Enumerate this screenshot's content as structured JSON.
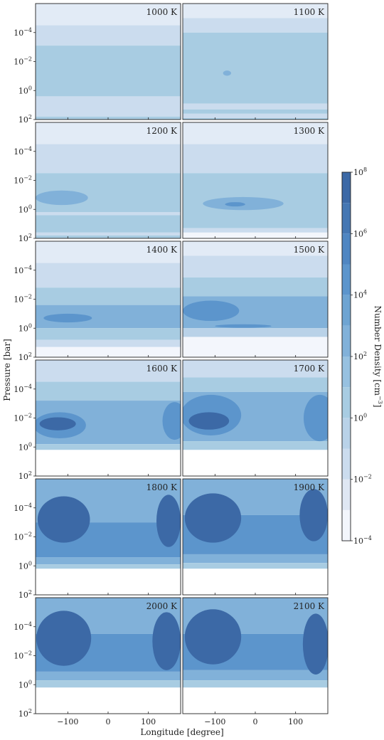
{
  "chart_data": {
    "type": "heatmap",
    "title": "",
    "xlabel": "Longitude [degree]",
    "ylabel": "Pressure [bar]",
    "xlim": [
      -180,
      180
    ],
    "ylim": [
      100,
      1e-06
    ],
    "yscale": "log",
    "y_inverted": true,
    "x_ticks": [
      -100,
      0,
      100
    ],
    "x_tick_labels": [
      "−100",
      "0",
      "100"
    ],
    "y_ticks_exp": [
      -4,
      -2,
      0,
      2
    ],
    "grid": false,
    "colorbar": {
      "label": "Number Density [cm",
      "label_exponent": "−3",
      "label_close": "]",
      "tick_exponents": [
        8,
        6,
        4,
        2,
        0,
        -2,
        -4
      ],
      "levels_log10": [
        -4,
        -3,
        -2,
        -1,
        0,
        1,
        2,
        3,
        4,
        5,
        6,
        7,
        8
      ],
      "colors": [
        "#f3f6fc",
        "#dfe7f3",
        "#cbdcee",
        "#b9d2e8",
        "#a8cce2",
        "#97c1e0",
        "#81b1d9",
        "#6ea4d2",
        "#5c95cc",
        "#4f86c2",
        "#4577b3",
        "#3c69a6",
        "#335b97"
      ],
      "scale": "log"
    },
    "panels": [
      {
        "temp": "1000 K",
        "bands": [
          {
            "p": [
              -6,
              -4.5
            ],
            "level": "#e2ebf6"
          },
          {
            "p": [
              -4.5,
              -3.1
            ],
            "level": "#cbdcee"
          },
          {
            "p": [
              -3.1,
              0.4
            ],
            "level": "#a8cce2"
          },
          {
            "p": [
              0.4,
              1.8
            ],
            "level": "#cbdcee"
          },
          {
            "p": [
              1.8,
              2
            ],
            "level": "#a8cce2"
          }
        ],
        "blobs": []
      },
      {
        "temp": "1100 K",
        "bands": [
          {
            "p": [
              -6,
              -5
            ],
            "level": "#e2ebf6"
          },
          {
            "p": [
              -5,
              -4
            ],
            "level": "#cbdcee"
          },
          {
            "p": [
              -4,
              0.9
            ],
            "level": "#a8cce2"
          },
          {
            "p": [
              0.9,
              1.3
            ],
            "level": "#cbdcee"
          },
          {
            "p": [
              1.3,
              1.6
            ],
            "level": "#a8cce2"
          },
          {
            "p": [
              1.6,
              1.9
            ],
            "level": "#cbdcee"
          },
          {
            "p": [
              1.9,
              2
            ],
            "level": "#a8cce2"
          }
        ],
        "blobs": [
          {
            "lon": -70,
            "p": -1.2,
            "rx": 10,
            "rp": 0.18,
            "level": "#81b1d9"
          }
        ]
      },
      {
        "temp": "1200 K",
        "bands": [
          {
            "p": [
              -6,
              -4.5
            ],
            "level": "#e2ebf6"
          },
          {
            "p": [
              -4.5,
              -2.5
            ],
            "level": "#cbdcee"
          },
          {
            "p": [
              -2.5,
              0.2
            ],
            "level": "#a8cce2"
          },
          {
            "p": [
              0.2,
              0.4
            ],
            "level": "#cbdcee"
          },
          {
            "p": [
              0.4,
              1.6
            ],
            "level": "#a8cce2"
          },
          {
            "p": [
              1.6,
              1.8
            ],
            "level": "#cbdcee"
          },
          {
            "p": [
              1.8,
              2
            ],
            "level": "#a8cce2"
          }
        ],
        "blobs": [
          {
            "lon": -115,
            "p": -0.8,
            "rx": 65,
            "rp": 0.5,
            "level": "#81b1d9"
          }
        ]
      },
      {
        "temp": "1300 K",
        "bands": [
          {
            "p": [
              -6,
              -4.5
            ],
            "level": "#e2ebf6"
          },
          {
            "p": [
              -4.5,
              -2.5
            ],
            "level": "#cbdcee"
          },
          {
            "p": [
              -2.5,
              1.3
            ],
            "level": "#a8cce2"
          },
          {
            "p": [
              1.3,
              1.6
            ],
            "level": "#cbdcee"
          },
          {
            "p": [
              1.6,
              2
            ],
            "level": "#f3f6fc"
          }
        ],
        "blobs": [
          {
            "lon": -30,
            "p": -0.4,
            "rx": 100,
            "rp": 0.45,
            "level": "#81b1d9"
          },
          {
            "lon": -50,
            "p": -0.35,
            "rx": 25,
            "rp": 0.15,
            "level": "#5c95cc"
          }
        ]
      },
      {
        "temp": "1400 K",
        "bands": [
          {
            "p": [
              -6,
              -4.5
            ],
            "level": "#e2ebf6"
          },
          {
            "p": [
              -4.5,
              -2.8
            ],
            "level": "#cbdcee"
          },
          {
            "p": [
              -2.8,
              -1.6
            ],
            "level": "#a8cce2"
          },
          {
            "p": [
              -1.6,
              0
            ],
            "level": "#81b1d9"
          },
          {
            "p": [
              0,
              0.8
            ],
            "level": "#a8cce2"
          },
          {
            "p": [
              0.8,
              1.3
            ],
            "level": "#cbdcee"
          },
          {
            "p": [
              1.3,
              2
            ],
            "level": "#f3f6fc"
          }
        ],
        "blobs": [
          {
            "lon": -100,
            "p": -0.7,
            "rx": 60,
            "rp": 0.3,
            "level": "#5c95cc"
          }
        ]
      },
      {
        "temp": "1500 K",
        "bands": [
          {
            "p": [
              -6,
              -5
            ],
            "level": "#e2ebf6"
          },
          {
            "p": [
              -5,
              -3.5
            ],
            "level": "#cbdcee"
          },
          {
            "p": [
              -3.5,
              -2.2
            ],
            "level": "#a8cce2"
          },
          {
            "p": [
              -2.2,
              0
            ],
            "level": "#81b1d9"
          },
          {
            "p": [
              0,
              0.6
            ],
            "level": "#b9d2e8"
          },
          {
            "p": [
              0.6,
              2
            ],
            "level": "#f3f6fc"
          }
        ],
        "blobs": [
          {
            "lon": -110,
            "p": -1.2,
            "rx": 70,
            "rp": 0.7,
            "level": "#5c95cc"
          },
          {
            "lon": -30,
            "p": -0.15,
            "rx": 70,
            "rp": 0.12,
            "level": "#5c95cc"
          }
        ]
      },
      {
        "temp": "1600 K",
        "bands": [
          {
            "p": [
              -6,
              -4.5
            ],
            "level": "#cbdcee"
          },
          {
            "p": [
              -4.5,
              -3.2
            ],
            "level": "#a8cce2"
          },
          {
            "p": [
              -3.2,
              -0.2
            ],
            "level": "#81b1d9"
          },
          {
            "p": [
              -0.2,
              0.2
            ],
            "level": "#a8cce2"
          },
          {
            "p": [
              0.2,
              2
            ],
            "level": "#ffffff"
          }
        ],
        "blobs": [
          {
            "lon": -120,
            "p": -1.5,
            "rx": 65,
            "rp": 0.9,
            "level": "#5c95cc"
          },
          {
            "lon": -125,
            "p": -1.6,
            "rx": 45,
            "rp": 0.45,
            "level": "#3c69a6"
          },
          {
            "lon": 165,
            "p": -1.8,
            "rx": 30,
            "rp": 1.3,
            "level": "#5c95cc"
          }
        ]
      },
      {
        "temp": "1700 K",
        "bands": [
          {
            "p": [
              -6,
              -4.8
            ],
            "level": "#cbdcee"
          },
          {
            "p": [
              -4.8,
              -3.8
            ],
            "level": "#a8cce2"
          },
          {
            "p": [
              -3.8,
              -0.4
            ],
            "level": "#81b1d9"
          },
          {
            "p": [
              -0.4,
              0.2
            ],
            "level": "#a8cce2"
          },
          {
            "p": [
              0.2,
              2
            ],
            "level": "#ffffff"
          }
        ],
        "blobs": [
          {
            "lon": -110,
            "p": -2.2,
            "rx": 75,
            "rp": 1.4,
            "level": "#5c95cc"
          },
          {
            "lon": -115,
            "p": -1.8,
            "rx": 50,
            "rp": 0.6,
            "level": "#3c69a6"
          },
          {
            "lon": 160,
            "p": -2,
            "rx": 40,
            "rp": 1.6,
            "level": "#5c95cc"
          }
        ]
      },
      {
        "temp": "1800 K",
        "bands": [
          {
            "p": [
              -6,
              -3
            ],
            "level": "#81b1d9"
          },
          {
            "p": [
              -3,
              -0.6
            ],
            "level": "#5c95cc"
          },
          {
            "p": [
              -0.6,
              -0.1
            ],
            "level": "#81b1d9"
          },
          {
            "p": [
              -0.1,
              0.2
            ],
            "level": "#a8cce2"
          },
          {
            "p": [
              0.2,
              2
            ],
            "level": "#ffffff"
          }
        ],
        "blobs": [
          {
            "lon": -110,
            "p": -3.2,
            "rx": 65,
            "rp": 1.6,
            "level": "#3c69a6"
          },
          {
            "lon": 150,
            "p": -3.1,
            "rx": 30,
            "rp": 1.8,
            "level": "#3c69a6"
          }
        ]
      },
      {
        "temp": "1900 K",
        "bands": [
          {
            "p": [
              -6,
              -3.5
            ],
            "level": "#81b1d9"
          },
          {
            "p": [
              -3.5,
              -0.8
            ],
            "level": "#5c95cc"
          },
          {
            "p": [
              -0.8,
              -0.2
            ],
            "level": "#81b1d9"
          },
          {
            "p": [
              -0.2,
              0.2
            ],
            "level": "#a8cce2"
          },
          {
            "p": [
              0.2,
              2
            ],
            "level": "#ffffff"
          }
        ],
        "blobs": [
          {
            "lon": -105,
            "p": -3.3,
            "rx": 70,
            "rp": 1.7,
            "level": "#3c69a6"
          },
          {
            "lon": 145,
            "p": -3.5,
            "rx": 35,
            "rp": 1.8,
            "level": "#3c69a6"
          }
        ]
      },
      {
        "temp": "2000 K",
        "bands": [
          {
            "p": [
              -6,
              -3.5
            ],
            "level": "#81b1d9"
          },
          {
            "p": [
              -3.5,
              -0.9
            ],
            "level": "#5c95cc"
          },
          {
            "p": [
              -0.9,
              -0.3
            ],
            "level": "#81b1d9"
          },
          {
            "p": [
              -0.3,
              0.2
            ],
            "level": "#a8cce2"
          },
          {
            "p": [
              0.2,
              2
            ],
            "level": "#ffffff"
          }
        ],
        "blobs": [
          {
            "lon": -110,
            "p": -3.2,
            "rx": 68,
            "rp": 1.9,
            "level": "#3c69a6"
          },
          {
            "lon": 145,
            "p": -3,
            "rx": 35,
            "rp": 2,
            "level": "#3c69a6"
          }
        ]
      },
      {
        "temp": "2100 K",
        "bands": [
          {
            "p": [
              -6,
              -3.5
            ],
            "level": "#81b1d9"
          },
          {
            "p": [
              -3.5,
              -1
            ],
            "level": "#5c95cc"
          },
          {
            "p": [
              -1,
              -0.3
            ],
            "level": "#81b1d9"
          },
          {
            "p": [
              -0.3,
              0.2
            ],
            "level": "#a8cce2"
          },
          {
            "p": [
              0.2,
              2
            ],
            "level": "#ffffff"
          }
        ],
        "blobs": [
          {
            "lon": -105,
            "p": -3.3,
            "rx": 70,
            "rp": 1.9,
            "level": "#3c69a6"
          },
          {
            "lon": 150,
            "p": -2.8,
            "rx": 32,
            "rp": 2.1,
            "level": "#3c69a6"
          }
        ]
      }
    ]
  }
}
